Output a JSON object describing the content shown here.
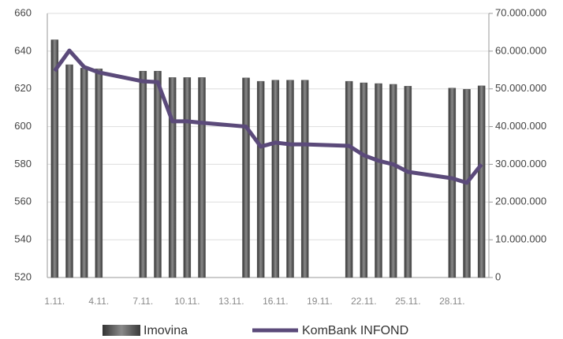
{
  "chart_data": {
    "type": "bar_line",
    "categories": [
      "1.11.",
      null,
      null,
      "4.11.",
      null,
      null,
      "7.11.",
      null,
      null,
      "10.11.",
      null,
      null,
      "13.11.",
      null,
      null,
      "16.11.",
      null,
      null,
      "19.11.",
      null,
      null,
      "22.11.",
      null,
      null,
      "25.11.",
      null,
      null,
      "28.11.",
      null,
      null
    ],
    "series": [
      {
        "name": "Imovina",
        "type": "bar",
        "axis": "y2",
        "color": "#555555",
        "values": [
          63000000,
          56400000,
          55500000,
          55300000,
          null,
          null,
          54700000,
          54700000,
          53000000,
          53000000,
          53000000,
          null,
          null,
          52900000,
          52000000,
          52300000,
          52300000,
          52300000,
          null,
          null,
          52000000,
          51600000,
          51400000,
          51200000,
          50700000,
          null,
          null,
          50200000,
          49900000,
          50800000
        ]
      },
      {
        "name": "KomBank INFOND",
        "type": "line",
        "axis": "y",
        "color": "#5b4a7a",
        "values": [
          629.5,
          640.3,
          631.6,
          628.7,
          null,
          null,
          624,
          623.6,
          602.8,
          602.8,
          602,
          null,
          null,
          600,
          589.4,
          591.5,
          590.6,
          590.6,
          null,
          null,
          589.8,
          584.8,
          581.9,
          580,
          576,
          null,
          null,
          572.6,
          570.2,
          580
        ]
      }
    ],
    "ylim": [
      520,
      660
    ],
    "yticks": [
      520,
      540,
      560,
      580,
      600,
      620,
      640,
      660
    ],
    "y2lim": [
      0,
      70000000
    ],
    "y2ticks": [
      0,
      {
        "value": 10000000,
        "label": "10.000.000"
      },
      {
        "value": 20000000,
        "label": "20.000.000"
      },
      {
        "value": 30000000,
        "label": "30.000.000"
      },
      {
        "value": 40000000,
        "label": "40.000.000"
      },
      {
        "value": 50000000,
        "label": "50.000.000"
      },
      {
        "value": 60000000,
        "label": "60.000.000"
      },
      {
        "value": 70000000,
        "label": "70.000.000"
      }
    ],
    "grid": true,
    "span_gaps": true,
    "legend": "bottom"
  }
}
